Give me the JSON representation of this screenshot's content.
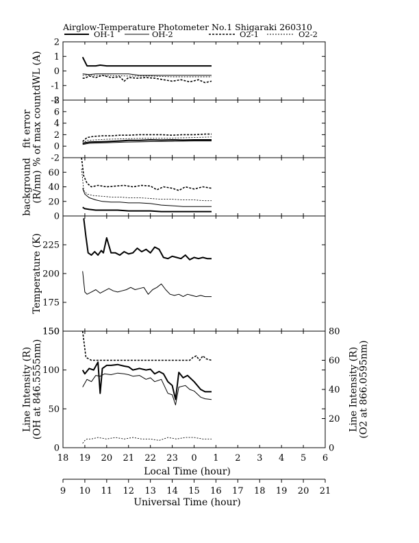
{
  "title": "Airglow-Temperature Photometer No.1  Shigaraki  260310",
  "legend": [
    {
      "label": "OH-1",
      "style": "solid-bold"
    },
    {
      "label": "OH-2",
      "style": "solid-thin"
    },
    {
      "label": "O2-1",
      "style": "dashed-bold"
    },
    {
      "label": "O2-2",
      "style": "dashed-thin"
    }
  ],
  "colors": {
    "line": "#000000",
    "background": "#ffffff"
  },
  "chart_data": [
    {
      "type": "line",
      "ylabel": "dWL (A)",
      "ylim": [
        -2,
        2
      ],
      "yticks": [
        -2,
        -1,
        0,
        1,
        2
      ],
      "series": [
        {
          "name": "OH-1",
          "x": [
            18.9,
            19.1,
            19.5,
            19.7,
            20.0,
            20.5,
            21.0,
            21.5,
            22.0,
            22.5,
            23.0,
            23.5,
            24.0,
            24.5,
            24.8
          ],
          "y": [
            0.95,
            0.35,
            0.35,
            0.4,
            0.35,
            0.35,
            0.35,
            0.35,
            0.35,
            0.35,
            0.35,
            0.35,
            0.35,
            0.35,
            0.35
          ]
        },
        {
          "name": "OH-2",
          "x": [
            18.9,
            19.2,
            19.5,
            20.0,
            21.0,
            21.5,
            22.0,
            23.0,
            24.0,
            24.8
          ],
          "y": [
            -0.2,
            -0.25,
            -0.2,
            -0.2,
            -0.2,
            -0.3,
            -0.3,
            -0.3,
            -0.3,
            -0.3
          ]
        },
        {
          "name": "O2-1",
          "x": [
            18.9,
            19.0,
            19.2,
            19.5,
            19.8,
            20.2,
            20.6,
            20.8,
            21.0,
            21.4,
            21.8,
            22.2,
            22.6,
            23.0,
            23.4,
            23.8,
            24.2,
            24.5,
            24.8
          ],
          "y": [
            -0.5,
            -0.5,
            -0.35,
            -0.45,
            -0.3,
            -0.45,
            -0.4,
            -0.7,
            -0.45,
            -0.5,
            -0.45,
            -0.5,
            -0.6,
            -0.7,
            -0.6,
            -0.75,
            -0.6,
            -0.8,
            -0.7
          ]
        },
        {
          "name": "O2-2",
          "x": [
            18.9,
            19.5,
            20.0,
            21.0,
            22.0,
            23.0,
            24.0,
            24.8
          ],
          "y": [
            -0.3,
            -0.3,
            -0.3,
            -0.35,
            -0.35,
            -0.4,
            -0.4,
            -0.4
          ]
        }
      ]
    },
    {
      "type": "line",
      "ylabel": "fit error\n% of max count",
      "ylim": [
        -2,
        8
      ],
      "yticks": [
        -2,
        0,
        2,
        4,
        6,
        8
      ],
      "series": [
        {
          "name": "OH-1",
          "x": [
            18.9,
            19.2,
            19.6,
            20.0,
            20.6,
            21.0,
            21.5,
            22.0,
            22.5,
            23.0,
            23.5,
            24.0,
            24.5,
            24.8
          ],
          "y": [
            0.5,
            0.7,
            0.75,
            0.8,
            0.9,
            1.0,
            1.0,
            1.1,
            1.05,
            1.1,
            1.05,
            1.1,
            1.1,
            1.1
          ]
        },
        {
          "name": "OH-2",
          "x": [
            18.9,
            19.2,
            19.6,
            20.0,
            20.8,
            21.5,
            22.0,
            23.0,
            24.0,
            24.8
          ],
          "y": [
            0.3,
            0.5,
            0.55,
            0.6,
            0.7,
            0.75,
            0.8,
            0.85,
            0.9,
            0.9
          ]
        },
        {
          "name": "O2-1",
          "x": [
            18.9,
            19.1,
            19.4,
            19.8,
            20.2,
            20.6,
            21.0,
            21.5,
            22.0,
            22.5,
            23.0,
            23.5,
            24.0,
            24.5,
            24.8
          ],
          "y": [
            0.8,
            1.5,
            1.7,
            1.8,
            1.8,
            1.9,
            1.9,
            2.0,
            2.0,
            2.0,
            1.9,
            2.0,
            2.0,
            2.1,
            2.1
          ]
        },
        {
          "name": "O2-2",
          "x": [
            18.9,
            19.1,
            19.5,
            20.0,
            21.0,
            22.0,
            23.0,
            24.0,
            24.8
          ],
          "y": [
            0.5,
            1.0,
            1.1,
            1.2,
            1.3,
            1.4,
            1.4,
            1.5,
            1.6
          ]
        }
      ]
    },
    {
      "type": "line",
      "ylabel": "background\n(R/nm)",
      "ylim": [
        0,
        80
      ],
      "yticks": [
        0,
        20,
        40,
        60
      ],
      "series": [
        {
          "name": "OH-1",
          "x": [
            18.9,
            19.0,
            19.2,
            19.5,
            20.0,
            20.5,
            21.0,
            21.5,
            22.0,
            22.5,
            23.0,
            23.5,
            24.0,
            24.8
          ],
          "y": [
            12,
            10,
            9,
            8,
            8,
            8,
            7,
            7,
            7,
            6,
            6,
            6,
            6,
            6
          ]
        },
        {
          "name": "OH-2",
          "x": [
            18.9,
            19.0,
            19.2,
            19.5,
            19.8,
            20.2,
            20.6,
            21.0,
            21.5,
            22.0,
            22.5,
            23.0,
            23.5,
            24.0,
            24.5,
            24.8
          ],
          "y": [
            38,
            30,
            25,
            22,
            20,
            19,
            19,
            18,
            18,
            17,
            15,
            14,
            13,
            13,
            13,
            13
          ]
        },
        {
          "name": "O2-1",
          "x": [
            18.85,
            18.95,
            19.1,
            19.3,
            19.6,
            20.0,
            20.4,
            20.8,
            21.2,
            21.6,
            22.0,
            22.3,
            22.6,
            23.0,
            23.3,
            23.6,
            24.0,
            24.4,
            24.8
          ],
          "y": [
            80,
            55,
            45,
            40,
            42,
            40,
            41,
            42,
            40,
            42,
            41,
            36,
            40,
            38,
            35,
            40,
            37,
            40,
            38
          ]
        },
        {
          "name": "O2-2",
          "x": [
            18.85,
            18.95,
            19.1,
            19.4,
            19.8,
            20.2,
            20.6,
            21.0,
            21.5,
            22.0,
            22.5,
            23.0,
            23.5,
            24.0,
            24.5,
            24.8
          ],
          "y": [
            65,
            35,
            30,
            28,
            27,
            26,
            26,
            25,
            25,
            24,
            23,
            23,
            22,
            22,
            21,
            21
          ]
        }
      ]
    },
    {
      "type": "line",
      "ylabel": "Temperature (K)",
      "ylim": [
        150,
        250
      ],
      "yticks": [
        150,
        175,
        200,
        225
      ],
      "series": [
        {
          "name": "OH-1",
          "x": [
            18.95,
            19.05,
            19.15,
            19.3,
            19.45,
            19.6,
            19.75,
            19.85,
            20.0,
            20.2,
            20.4,
            20.6,
            20.8,
            21.0,
            21.2,
            21.4,
            21.6,
            21.8,
            22.0,
            22.2,
            22.4,
            22.6,
            22.8,
            23.0,
            23.2,
            23.4,
            23.6,
            23.8,
            24.0,
            24.2,
            24.4,
            24.6,
            24.8
          ],
          "y": [
            248,
            232,
            218,
            216,
            219,
            216,
            220,
            218,
            231,
            218,
            218,
            216,
            219,
            217,
            218,
            222,
            219,
            221,
            218,
            223,
            221,
            214,
            213,
            215,
            214,
            213,
            216,
            212,
            214,
            213,
            214,
            213,
            213
          ]
        },
        {
          "name": "OH-2",
          "x": [
            18.9,
            19.0,
            19.1,
            19.3,
            19.5,
            19.7,
            19.9,
            20.1,
            20.3,
            20.5,
            20.7,
            20.9,
            21.1,
            21.3,
            21.5,
            21.7,
            21.9,
            22.1,
            22.3,
            22.5,
            22.7,
            22.9,
            23.1,
            23.3,
            23.5,
            23.7,
            23.9,
            24.1,
            24.3,
            24.5,
            24.8
          ],
          "y": [
            202,
            184,
            182,
            184,
            186,
            183,
            185,
            187,
            185,
            184,
            185,
            186,
            188,
            186,
            187,
            188,
            182,
            186,
            188,
            191,
            186,
            182,
            181,
            182,
            180,
            182,
            181,
            180,
            181,
            180,
            180
          ]
        }
      ]
    },
    {
      "type": "line",
      "ylabel": "Line Intensity (R)\n(OH at 846.5555nm)",
      "ylabel_right": "Line Intensity (R)\n(O2 at 866.0595nm)",
      "ylim": [
        0,
        150
      ],
      "ylim_right": [
        0,
        80
      ],
      "yticks": [
        0,
        50,
        100,
        150
      ],
      "yticks_right": [
        0,
        20,
        40,
        60,
        80
      ],
      "series": [
        {
          "name": "OH-1",
          "axis": "left",
          "x": [
            18.9,
            19.0,
            19.2,
            19.4,
            19.6,
            19.7,
            19.8,
            20.0,
            20.2,
            20.5,
            20.8,
            21.0,
            21.2,
            21.5,
            21.8,
            22.0,
            22.2,
            22.4,
            22.6,
            22.8,
            23.0,
            23.15,
            23.3,
            23.5,
            23.7,
            24.0,
            24.3,
            24.5,
            24.8
          ],
          "y": [
            100,
            95,
            102,
            100,
            110,
            70,
            102,
            106,
            106,
            107,
            105,
            104,
            100,
            102,
            100,
            101,
            95,
            98,
            95,
            85,
            80,
            62,
            97,
            90,
            93,
            85,
            75,
            72,
            72
          ]
        },
        {
          "name": "OH-2",
          "axis": "left",
          "x": [
            18.9,
            19.1,
            19.3,
            19.5,
            19.7,
            19.9,
            20.2,
            20.5,
            20.8,
            21.0,
            21.2,
            21.5,
            21.8,
            22.0,
            22.2,
            22.5,
            22.8,
            23.0,
            23.15,
            23.3,
            23.6,
            23.8,
            24.0,
            24.3,
            24.5,
            24.8
          ],
          "y": [
            78,
            88,
            85,
            93,
            92,
            95,
            94,
            96,
            95,
            94,
            92,
            93,
            88,
            90,
            85,
            88,
            70,
            68,
            55,
            78,
            80,
            75,
            73,
            65,
            63,
            62
          ]
        },
        {
          "name": "O2-1",
          "axis": "right",
          "x": [
            18.9,
            19.05,
            19.3,
            20.0,
            21.0,
            22.0,
            23.0,
            23.8,
            23.95,
            24.1,
            24.25,
            24.4,
            24.55,
            24.8
          ],
          "y": [
            80,
            62,
            60,
            60,
            60,
            60,
            60,
            60,
            62,
            63,
            60,
            63,
            61,
            60
          ]
        },
        {
          "name": "O2-2",
          "axis": "right",
          "x": [
            18.9,
            19.0,
            19.1,
            19.3,
            19.6,
            20.0,
            20.4,
            20.8,
            21.2,
            21.6,
            22.0,
            22.4,
            22.8,
            23.2,
            23.6,
            24.0,
            24.4,
            24.8
          ],
          "y": [
            3,
            5,
            6,
            6,
            7,
            6,
            7,
            6,
            7,
            6,
            6,
            5,
            7,
            6,
            7,
            7,
            6,
            6
          ]
        }
      ]
    }
  ],
  "x_axis": {
    "label": "Local Time (hour)",
    "range": [
      18,
      30
    ],
    "ticks": [
      18,
      19,
      20,
      21,
      22,
      23,
      24,
      25,
      26,
      27,
      28,
      29,
      30
    ],
    "tick_labels": [
      "18",
      "19",
      "20",
      "21",
      "22",
      "23",
      "0",
      "1",
      "2",
      "3",
      "4",
      "5",
      "6"
    ]
  },
  "x_axis_ut": {
    "label": "Universal Time (hour)",
    "range": [
      9,
      21
    ],
    "ticks": [
      9,
      10,
      11,
      12,
      13,
      14,
      15,
      16,
      17,
      18,
      19,
      20,
      21
    ],
    "tick_labels": [
      "9",
      "10",
      "11",
      "12",
      "13",
      "14",
      "15",
      "16",
      "17",
      "18",
      "19",
      "20",
      "21"
    ]
  }
}
